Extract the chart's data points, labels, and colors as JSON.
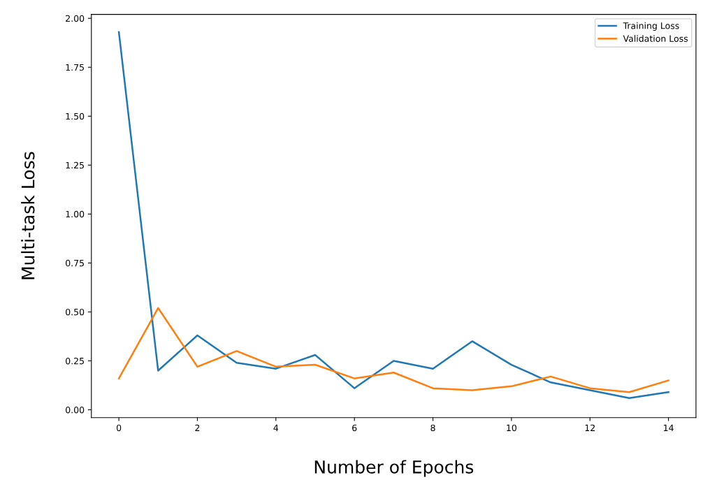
{
  "chart_data": {
    "type": "line",
    "xlabel": "Number of Epochs",
    "ylabel": "Multi-task Loss",
    "x": [
      0,
      1,
      2,
      3,
      4,
      5,
      6,
      7,
      8,
      9,
      10,
      11,
      12,
      13,
      14
    ],
    "series": [
      {
        "name": "Training Loss",
        "color": "#1f77b4",
        "values": [
          1.93,
          0.2,
          0.38,
          0.24,
          0.21,
          0.28,
          0.11,
          0.25,
          0.21,
          0.35,
          0.23,
          0.14,
          0.1,
          0.06,
          0.09
        ]
      },
      {
        "name": "Validation Loss",
        "color": "#ff7f0e",
        "values": [
          0.16,
          0.52,
          0.22,
          0.3,
          0.22,
          0.23,
          0.16,
          0.19,
          0.11,
          0.1,
          0.12,
          0.17,
          0.11,
          0.09,
          0.15
        ]
      }
    ],
    "xlim": [
      -0.7,
      14.7
    ],
    "ylim": [
      -0.04,
      2.02
    ],
    "xticks": [
      0,
      2,
      4,
      6,
      8,
      10,
      12,
      14
    ],
    "yticks": [
      {
        "value": 0,
        "label": "0.00"
      },
      {
        "value": 0.25,
        "label": "0.25"
      },
      {
        "value": 0.5,
        "label": "0.50"
      },
      {
        "value": 0.75,
        "label": "0.75"
      },
      {
        "value": 1,
        "label": "1.00"
      },
      {
        "value": 1.25,
        "label": "1.25"
      },
      {
        "value": 1.5,
        "label": "1.50"
      },
      {
        "value": 1.75,
        "label": "1.75"
      },
      {
        "value": 2,
        "label": "2.00"
      }
    ],
    "legend": "top right",
    "grid": false
  }
}
